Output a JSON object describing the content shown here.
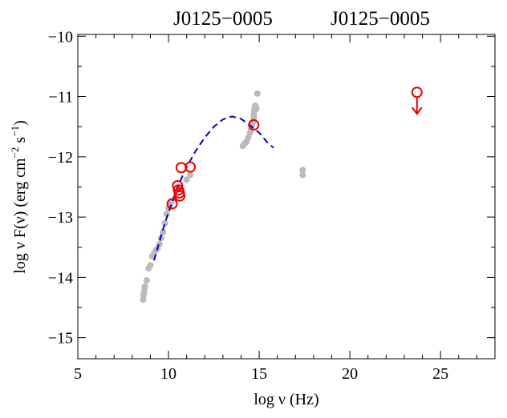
{
  "chart_data": {
    "type": "scatter",
    "title_left": "J0125−0005",
    "title_right": "J0125−0005",
    "xlabel": "log ν (Hz)",
    "ylabel_main": "log ν F(ν) (erg cm",
    "ylabel_exp1": "−2",
    "ylabel_mid": " s",
    "ylabel_exp2": "−1",
    "ylabel_end": ")",
    "xlim": [
      5,
      28
    ],
    "ylim": [
      -15.35,
      -9.97
    ],
    "x_ticks": [
      5,
      10,
      15,
      20,
      25
    ],
    "x_tick_labels": [
      "5",
      "10",
      "15",
      "20",
      "25"
    ],
    "y_ticks": [
      -10,
      -11,
      -12,
      -13,
      -14,
      -15
    ],
    "y_tick_labels": [
      "−10",
      "−11",
      "−12",
      "−13",
      "−14",
      "−15"
    ],
    "colors": {
      "archival": "#bbbbbb",
      "new": "#ee0000",
      "fit": "#0000cc",
      "axis": "#000000"
    },
    "series": [
      {
        "marker": "filled-circle",
        "x": [
          8.6,
          8.62,
          8.65,
          8.68,
          8.7,
          8.8,
          8.9,
          9.0,
          9.1,
          9.2,
          9.3,
          9.4,
          9.5,
          9.6,
          9.7,
          9.8,
          9.9,
          10.0,
          10.1,
          10.15,
          10.6,
          11.0,
          11.2,
          14.1,
          14.2,
          14.3,
          14.4,
          14.5,
          14.55,
          14.6,
          14.65,
          14.7,
          14.7,
          14.72,
          14.75,
          14.78,
          14.8,
          14.82,
          14.85,
          14.9,
          17.4,
          17.4
        ],
        "y": [
          -14.37,
          -14.3,
          -14.25,
          -14.18,
          -14.15,
          -14.05,
          -13.85,
          -13.8,
          -13.65,
          -13.6,
          -13.55,
          -13.52,
          -13.45,
          -13.35,
          -13.25,
          -13.1,
          -12.95,
          -12.85,
          -12.8,
          -12.75,
          -12.52,
          -12.38,
          -12.3,
          -11.82,
          -11.78,
          -11.75,
          -11.68,
          -11.6,
          -11.55,
          -11.48,
          -11.42,
          -11.35,
          -11.3,
          -11.25,
          -11.2,
          -11.15,
          -11.22,
          -11.18,
          -11.2,
          -10.95,
          -12.22,
          -12.3
        ]
      },
      {
        "marker": "open-circle",
        "x": [
          10.2,
          10.5,
          10.55,
          10.6,
          10.62,
          10.7,
          11.2,
          14.7
        ],
        "y": [
          -12.78,
          -12.48,
          -12.55,
          -12.6,
          -12.65,
          -12.18,
          -12.17,
          -11.47
        ]
      },
      {
        "marker": "upper-limit",
        "x": [
          23.7
        ],
        "y": [
          -10.93
        ]
      },
      {
        "marker": "dashed-line",
        "x": [
          9.2,
          9.6,
          10.0,
          10.5,
          11.0,
          11.5,
          12.0,
          12.5,
          13.0,
          13.5,
          14.0,
          14.5,
          15.0,
          15.5,
          15.8
        ],
        "y": [
          -13.72,
          -13.3,
          -12.92,
          -12.5,
          -12.17,
          -11.9,
          -11.68,
          -11.5,
          -11.38,
          -11.33,
          -11.37,
          -11.48,
          -11.6,
          -11.78,
          -11.85
        ]
      }
    ]
  }
}
